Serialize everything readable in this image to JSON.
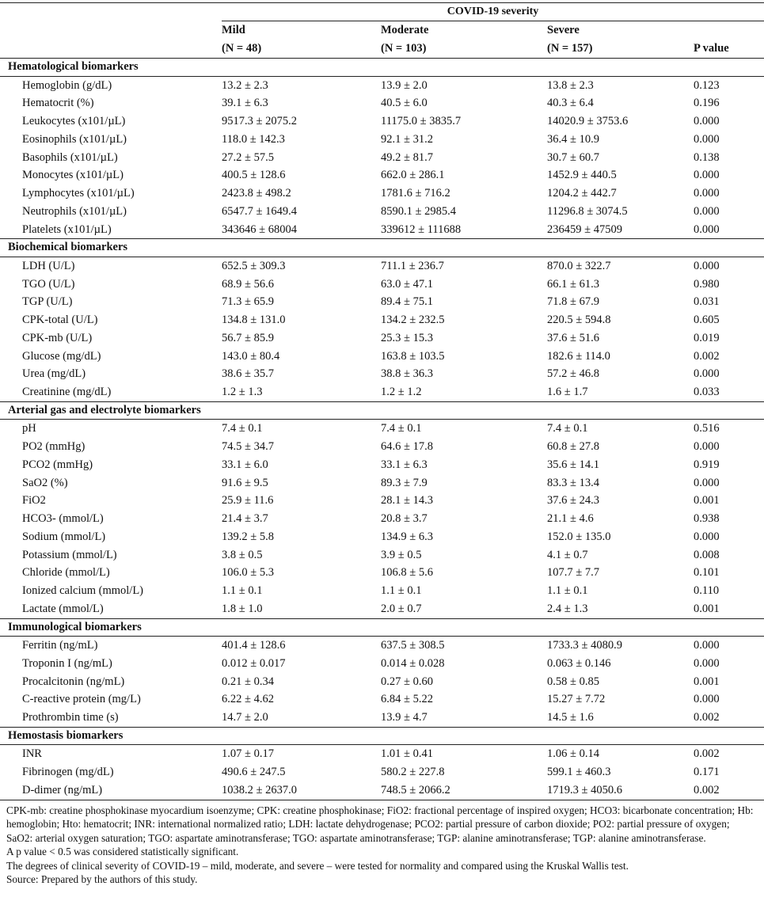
{
  "table": {
    "severity_header": "COVID-19 severity",
    "columns": [
      {
        "name": "Mild",
        "n": "(N = 48)"
      },
      {
        "name": "Moderate",
        "n": "(N = 103)"
      },
      {
        "name": "Severe",
        "n": "(N = 157)"
      }
    ],
    "p_header": "P value",
    "sections": [
      {
        "title": "Hematological biomarkers",
        "rows": [
          {
            "label": "Hemoglobin (g/dL)",
            "mild": "13.2 ± 2.3",
            "moderate": "13.9 ± 2.0",
            "severe": "13.8 ± 2.3",
            "p": "0.123"
          },
          {
            "label": "Hematocrit (%)",
            "mild": "39.1 ± 6.3",
            "moderate": "40.5 ± 6.0",
            "severe": "40.3 ± 6.4",
            "p": "0.196"
          },
          {
            "label": "Leukocytes (x101/µL)",
            "mild": "9517.3 ± 2075.2",
            "moderate": "11175.0 ± 3835.7",
            "severe": "14020.9 ± 3753.6",
            "p": "0.000"
          },
          {
            "label": "Eosinophils (x101/µL)",
            "mild": "118.0 ± 142.3",
            "moderate": "92.1 ± 31.2",
            "severe": "36.4 ± 10.9",
            "p": "0.000"
          },
          {
            "label": "Basophils (x101/µL)",
            "mild": "27.2 ± 57.5",
            "moderate": "49.2 ± 81.7",
            "severe": "30.7 ± 60.7",
            "p": "0.138"
          },
          {
            "label": "Monocytes (x101/µL)",
            "mild": "400.5 ± 128.6",
            "moderate": "662.0 ± 286.1",
            "severe": "1452.9 ± 440.5",
            "p": "0.000"
          },
          {
            "label": "Lymphocytes (x101/µL)",
            "mild": "2423.8 ± 498.2",
            "moderate": "1781.6 ± 716.2",
            "severe": "1204.2 ± 442.7",
            "p": "0.000"
          },
          {
            "label": "Neutrophils (x101/µL)",
            "mild": "6547.7 ± 1649.4",
            "moderate": "8590.1 ± 2985.4",
            "severe": "11296.8 ± 3074.5",
            "p": "0.000"
          },
          {
            "label": "Platelets (x101/µL)",
            "mild": "343646 ± 68004",
            "moderate": "339612 ± 111688",
            "severe": "236459 ± 47509",
            "p": "0.000"
          }
        ]
      },
      {
        "title": "Biochemical biomarkers",
        "rows": [
          {
            "label": "LDH (U/L)",
            "mild": "652.5 ± 309.3",
            "moderate": "711.1 ± 236.7",
            "severe": "870.0 ± 322.7",
            "p": "0.000"
          },
          {
            "label": "TGO (U/L)",
            "mild": "68.9 ± 56.6",
            "moderate": "63.0 ± 47.1",
            "severe": "66.1 ± 61.3",
            "p": "0.980"
          },
          {
            "label": "TGP (U/L)",
            "mild": "71.3 ± 65.9",
            "moderate": "89.4 ± 75.1",
            "severe": "71.8 ± 67.9",
            "p": "0.031"
          },
          {
            "label": "CPK-total (U/L)",
            "mild": "134.8 ± 131.0",
            "moderate": "134.2 ± 232.5",
            "severe": "220.5 ± 594.8",
            "p": "0.605"
          },
          {
            "label": "CPK-mb (U/L)",
            "mild": "56.7 ± 85.9",
            "moderate": "25.3 ± 15.3",
            "severe": "37.6 ± 51.6",
            "p": "0.019"
          },
          {
            "label": "Glucose (mg/dL)",
            "mild": "143.0 ± 80.4",
            "moderate": "163.8 ± 103.5",
            "severe": "182.6 ± 114.0",
            "p": "0.002"
          },
          {
            "label": "Urea (mg/dL)",
            "mild": "38.6 ± 35.7",
            "moderate": "38.8 ± 36.3",
            "severe": "57.2 ± 46.8",
            "p": "0.000"
          },
          {
            "label": "Creatinine (mg/dL)",
            "mild": "1.2 ± 1.3",
            "moderate": "1.2 ± 1.2",
            "severe": "1.6 ± 1.7",
            "p": "0.033"
          }
        ]
      },
      {
        "title": "Arterial gas and electrolyte biomarkers",
        "rows": [
          {
            "label": "pH",
            "mild": "7.4 ± 0.1",
            "moderate": "7.4 ± 0.1",
            "severe": "7.4 ± 0.1",
            "p": "0.516"
          },
          {
            "label": "PO2 (mmHg)",
            "mild": "74.5 ± 34.7",
            "moderate": "64.6 ± 17.8",
            "severe": "60.8 ± 27.8",
            "p": "0.000"
          },
          {
            "label": "PCO2 (mmHg)",
            "mild": "33.1 ± 6.0",
            "moderate": "33.1 ± 6.3",
            "severe": "35.6 ± 14.1",
            "p": "0.919"
          },
          {
            "label": "SaO2 (%)",
            "mild": "91.6 ± 9.5",
            "moderate": "89.3 ± 7.9",
            "severe": "83.3 ± 13.4",
            "p": "0.000"
          },
          {
            "label": "FiO2",
            "mild": "25.9 ± 11.6",
            "moderate": "28.1 ± 14.3",
            "severe": "37.6 ± 24.3",
            "p": "0.001"
          },
          {
            "label": "HCO3- (mmol/L)",
            "mild": "21.4 ± 3.7",
            "moderate": "20.8 ± 3.7",
            "severe": "21.1 ± 4.6",
            "p": "0.938"
          },
          {
            "label": "Sodium (mmol/L)",
            "mild": "139.2 ± 5.8",
            "moderate": "134.9 ± 6.3",
            "severe": "152.0 ± 135.0",
            "p": "0.000"
          },
          {
            "label": "Potassium (mmol/L)",
            "mild": "3.8 ± 0.5",
            "moderate": "3.9 ± 0.5",
            "severe": "4.1 ± 0.7",
            "p": "0.008"
          },
          {
            "label": "Chloride (mmol/L)",
            "mild": "106.0 ± 5.3",
            "moderate": "106.8 ± 5.6",
            "severe": "107.7 ± 7.7",
            "p": "0.101"
          },
          {
            "label": "Ionized calcium (mmol/L)",
            "mild": "1.1 ± 0.1",
            "moderate": "1.1 ± 0.1",
            "severe": "1.1 ± 0.1",
            "p": "0.110"
          },
          {
            "label": "Lactate (mmol/L)",
            "mild": "1.8 ± 1.0",
            "moderate": "2.0 ± 0.7",
            "severe": "2.4 ± 1.3",
            "p": "0.001"
          }
        ]
      },
      {
        "title": "Immunological biomarkers",
        "rows": [
          {
            "label": "Ferritin (ng/mL)",
            "mild": "401.4 ± 128.6",
            "moderate": "637.5 ± 308.5",
            "severe": "1733.3 ± 4080.9",
            "p": "0.000"
          },
          {
            "label": "Troponin I (ng/mL)",
            "mild": "0.012 ± 0.017",
            "moderate": "0.014 ± 0.028",
            "severe": "0.063 ± 0.146",
            "p": "0.000"
          },
          {
            "label": "Procalcitonin (ng/mL)",
            "mild": "0.21 ± 0.34",
            "moderate": "0.27 ± 0.60",
            "severe": "0.58 ± 0.85",
            "p": "0.001"
          },
          {
            "label": "C-reactive protein (mg/L)",
            "mild": "6.22 ± 4.62",
            "moderate": "6.84 ± 5.22",
            "severe": "15.27 ± 7.72",
            "p": "0.000"
          },
          {
            "label": "Prothrombin time (s)",
            "mild": "14.7 ± 2.0",
            "moderate": "13.9 ± 4.7",
            "severe": "14.5 ± 1.6",
            "p": "0.002"
          }
        ]
      },
      {
        "title": "Hemostasis biomarkers",
        "rows": [
          {
            "label": "INR",
            "mild": "1.07 ± 0.17",
            "moderate": "1.01 ± 0.41",
            "severe": "1.06 ± 0.14",
            "p": "0.002"
          },
          {
            "label": "Fibrinogen (mg/dL)",
            "mild": "490.6 ± 247.5",
            "moderate": "580.2 ± 227.8",
            "severe": "599.1 ± 460.3",
            "p": "0.171"
          },
          {
            "label": "D-dimer (ng/mL)",
            "mild": "1038.2 ± 2637.0",
            "moderate": "748.5 ± 2066.2",
            "severe": "1719.3 ± 4050.6",
            "p": "0.002"
          }
        ]
      }
    ]
  },
  "notes": {
    "abbreviations": "CPK-mb: creatine phosphokinase myocardium isoenzyme; CPK: creatine phosphokinase; FiO2: fractional percentage of inspired oxygen; HCO3: bicarbonate concentration; Hb: hemoglobin; Hto: hematocrit; INR: international normalized ratio; LDH: lactate dehydrogenase; PCO2: partial pressure of carbon dioxide; PO2: partial pressure of oxygen; SaO2: arterial oxygen saturation; TGO: aspartate aminotransferase; TGO: aspartate aminotransferase; TGP: alanine aminotransferase; TGP: alanine aminotransferase.",
    "significance": "A p value < 0.5 was considered statistically significant.",
    "method": "The degrees of clinical severity of COVID-19 – mild, moderate, and severe – were tested for normality and compared using the Kruskal Wallis test.",
    "source": "Source: Prepared by the authors of this study."
  }
}
